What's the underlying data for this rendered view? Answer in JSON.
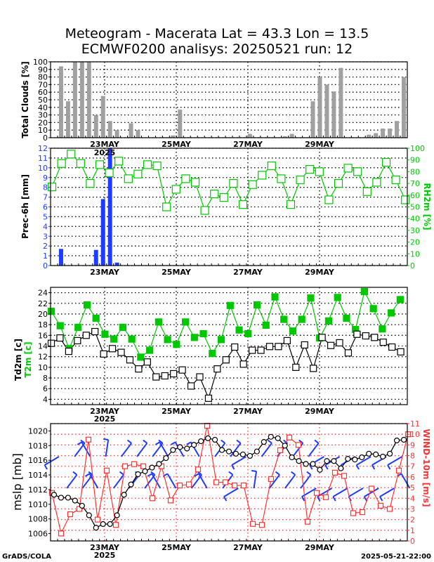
{
  "title_line1": "Meteogram - Macerata Lat = 43.3 Lon = 13.5",
  "title_line2": "ECMWF0200 analisys: 20250521 run: 12",
  "footer_left": "GrADS/COLA",
  "footer_right": "2025-05-21-22:00",
  "colors": {
    "clouds": "#a0a0a0",
    "precip": "#1e3cff",
    "rh": "#00c800",
    "t2m": "#00c800",
    "td2m": "#000000",
    "mslp": "#000000",
    "wind": "#ff3232",
    "barbs": "#1e3cff"
  },
  "chart_data": [
    {
      "id": "clouds",
      "type": "bar",
      "ylabel": "Total Clouds [%]",
      "ylim": [
        0,
        100
      ],
      "yticks": [
        0,
        10,
        20,
        30,
        40,
        50,
        60,
        70,
        80,
        90,
        100
      ],
      "date_labels": [
        "23MAY",
        "25MAY",
        "27MAY",
        "29MAY"
      ],
      "year_label": "2025",
      "values": [
        null,
        94,
        48,
        100,
        100,
        100,
        30,
        55,
        22,
        10,
        null,
        19,
        10,
        null,
        null,
        null,
        null,
        3,
        37,
        null,
        null,
        null,
        null,
        null,
        null,
        null,
        null,
        null,
        5,
        null,
        null,
        null,
        null,
        2,
        5,
        null,
        null,
        48,
        80,
        70,
        61,
        92,
        null,
        null,
        null,
        4,
        6,
        12,
        12,
        22,
        80
      ]
    },
    {
      "id": "precip_rh",
      "type": "bar+line",
      "ylabel_left": "Prec-6h [mm]",
      "ylabel_right": "RH2m [%]",
      "ylim_left": [
        0,
        12
      ],
      "yticks_left": [
        0,
        1,
        2,
        3,
        4,
        5,
        6,
        7,
        8,
        9,
        10,
        11,
        12
      ],
      "ylim_right": [
        0,
        100
      ],
      "yticks_right": [
        0,
        10,
        20,
        30,
        40,
        50,
        60,
        70,
        80,
        90,
        100
      ],
      "date_labels": [
        "23MAY",
        "25MAY",
        "27MAY",
        "29MAY"
      ],
      "year_label": "2025",
      "precip": [
        null,
        1.7,
        null,
        null,
        null,
        null,
        1.6,
        6.8,
        12,
        0.3,
        null,
        null,
        null,
        null,
        null,
        null,
        null,
        null,
        null,
        null,
        null,
        null,
        null,
        null,
        null,
        null,
        null,
        null,
        null,
        null,
        null,
        null,
        null,
        null,
        null,
        null,
        null,
        null,
        null,
        null,
        null,
        null,
        null,
        null,
        null,
        null,
        null,
        null,
        null,
        null,
        null
      ],
      "rh": [
        67,
        87,
        95,
        87,
        70,
        86,
        79,
        89,
        74,
        78,
        86,
        85,
        50,
        65,
        74,
        71,
        47,
        61,
        58,
        70,
        52,
        69,
        77,
        85,
        74,
        52,
        73,
        82,
        80,
        56,
        70,
        83,
        80,
        63,
        71,
        88,
        73,
        56
      ]
    },
    {
      "id": "temperature",
      "type": "line",
      "ylabel": "Td2m [c]",
      "ylabel2": "T2m [c]",
      "ylim": [
        3,
        25
      ],
      "yticks": [
        4,
        6,
        8,
        10,
        12,
        14,
        16,
        18,
        20,
        22,
        24
      ],
      "date_labels": [
        "23MAY",
        "25MAY",
        "27MAY",
        "29MAY"
      ],
      "year_label": "2025",
      "t2m": [
        20.5,
        17.8,
        13.5,
        17.5,
        21.7,
        19.2,
        16.2,
        15.3,
        17.5,
        15.3,
        11.9,
        13.2,
        18.5,
        15.2,
        14.3,
        18.5,
        15.6,
        16.3,
        12.6,
        15.2,
        21.6,
        17.0,
        16.3,
        21.7,
        17.9,
        23.2,
        19.0,
        16.8,
        19.0,
        23.0,
        15.5,
        18.7,
        23.1,
        19.2,
        17.1,
        24.2,
        21.0,
        17.2,
        20.2,
        22.7
      ],
      "td2m": [
        14.5,
        15.5,
        13.0,
        15.0,
        16.0,
        16.7,
        12.5,
        13.5,
        12.8,
        11.4,
        9.7,
        11.0,
        8.2,
        8.4,
        8.8,
        9.5,
        6.5,
        8.2,
        4.2,
        9.7,
        11.4,
        13.8,
        10.6,
        13.2,
        13.2,
        13.9,
        13.9,
        15.0,
        10.0,
        14.2,
        9.8,
        15.6,
        14.1,
        14.6,
        12.7,
        16.2,
        15.9,
        15.6,
        14.7,
        13.8,
        12.9
      ]
    },
    {
      "id": "mslp_wind",
      "type": "line",
      "ylabel_left": "mslp [mb]",
      "ylabel_right": "WIND-10m [m/s]",
      "ylim_left": [
        1005,
        1021
      ],
      "yticks_left": [
        1006,
        1008,
        1010,
        1012,
        1014,
        1016,
        1018,
        1020
      ],
      "ylim_right": [
        0,
        11
      ],
      "yticks_right": [
        0,
        1,
        2,
        3,
        4,
        5,
        6,
        7,
        8,
        9,
        10,
        11
      ],
      "date_labels": [
        "23MAY",
        "25MAY",
        "27MAY",
        "29MAY"
      ],
      "year_label": "2025",
      "mslp": [
        1011.3,
        1010.9,
        1010.9,
        1010.5,
        1009.8,
        1008.5,
        1006.8,
        1007.3,
        1007.3,
        1008.5,
        1011.3,
        1012.7,
        1014.1,
        1014.5,
        1015.0,
        1015.5,
        1016.3,
        1017.4,
        1017.8,
        1017.6,
        1018.1,
        1018.6,
        1019.0,
        1018.8,
        1017.4,
        1017.2,
        1016.9,
        1016.8,
        1016.6,
        1017.2,
        1018.5,
        1019.2,
        1019.0,
        1018.0,
        1016.4,
        1015.9,
        1015.5,
        1015.5,
        1014.7,
        1015.9,
        1015.9,
        1014.9,
        1016.2,
        1016.1,
        1016.4,
        1016.9,
        1016.8,
        1016.5,
        1016.9,
        1018.7,
        1018.8
      ],
      "wind": [
        4.5,
        0.7,
        2.5,
        3.0,
        9.5,
        2.0,
        6.6,
        1.5,
        7.0,
        7.2,
        7.0,
        4.0,
        7.0,
        3.8,
        5.2,
        5.3,
        6.7,
        10.8,
        5.5,
        5.5,
        5.2,
        5.2,
        1.6,
        1.5,
        5.8,
        8.5,
        9.7,
        9.0,
        1.8,
        4.5,
        4.1,
        6.4,
        6.1,
        2.6,
        2.7,
        4.9,
        3.3,
        3.0,
        6.6,
        10.0
      ],
      "barbs": [
        "sw",
        "ne",
        "ne",
        "ne",
        "nw",
        "nw",
        "n",
        "ne",
        "ne",
        "ne",
        "ne",
        "ne",
        "ne",
        "nw",
        "nw",
        "nw",
        "nw",
        "ne",
        "nw",
        "nw",
        "ne",
        "ne",
        "ne",
        "sw",
        "sw",
        "n",
        "ne",
        "ne",
        "ne",
        "ne",
        "ne",
        "ne",
        "ne",
        "sw",
        "sw",
        "sw",
        "sw",
        "sw",
        "sw",
        "sw",
        "sw",
        "sw",
        "sw",
        "sw",
        "sw",
        "nw"
      ]
    }
  ]
}
